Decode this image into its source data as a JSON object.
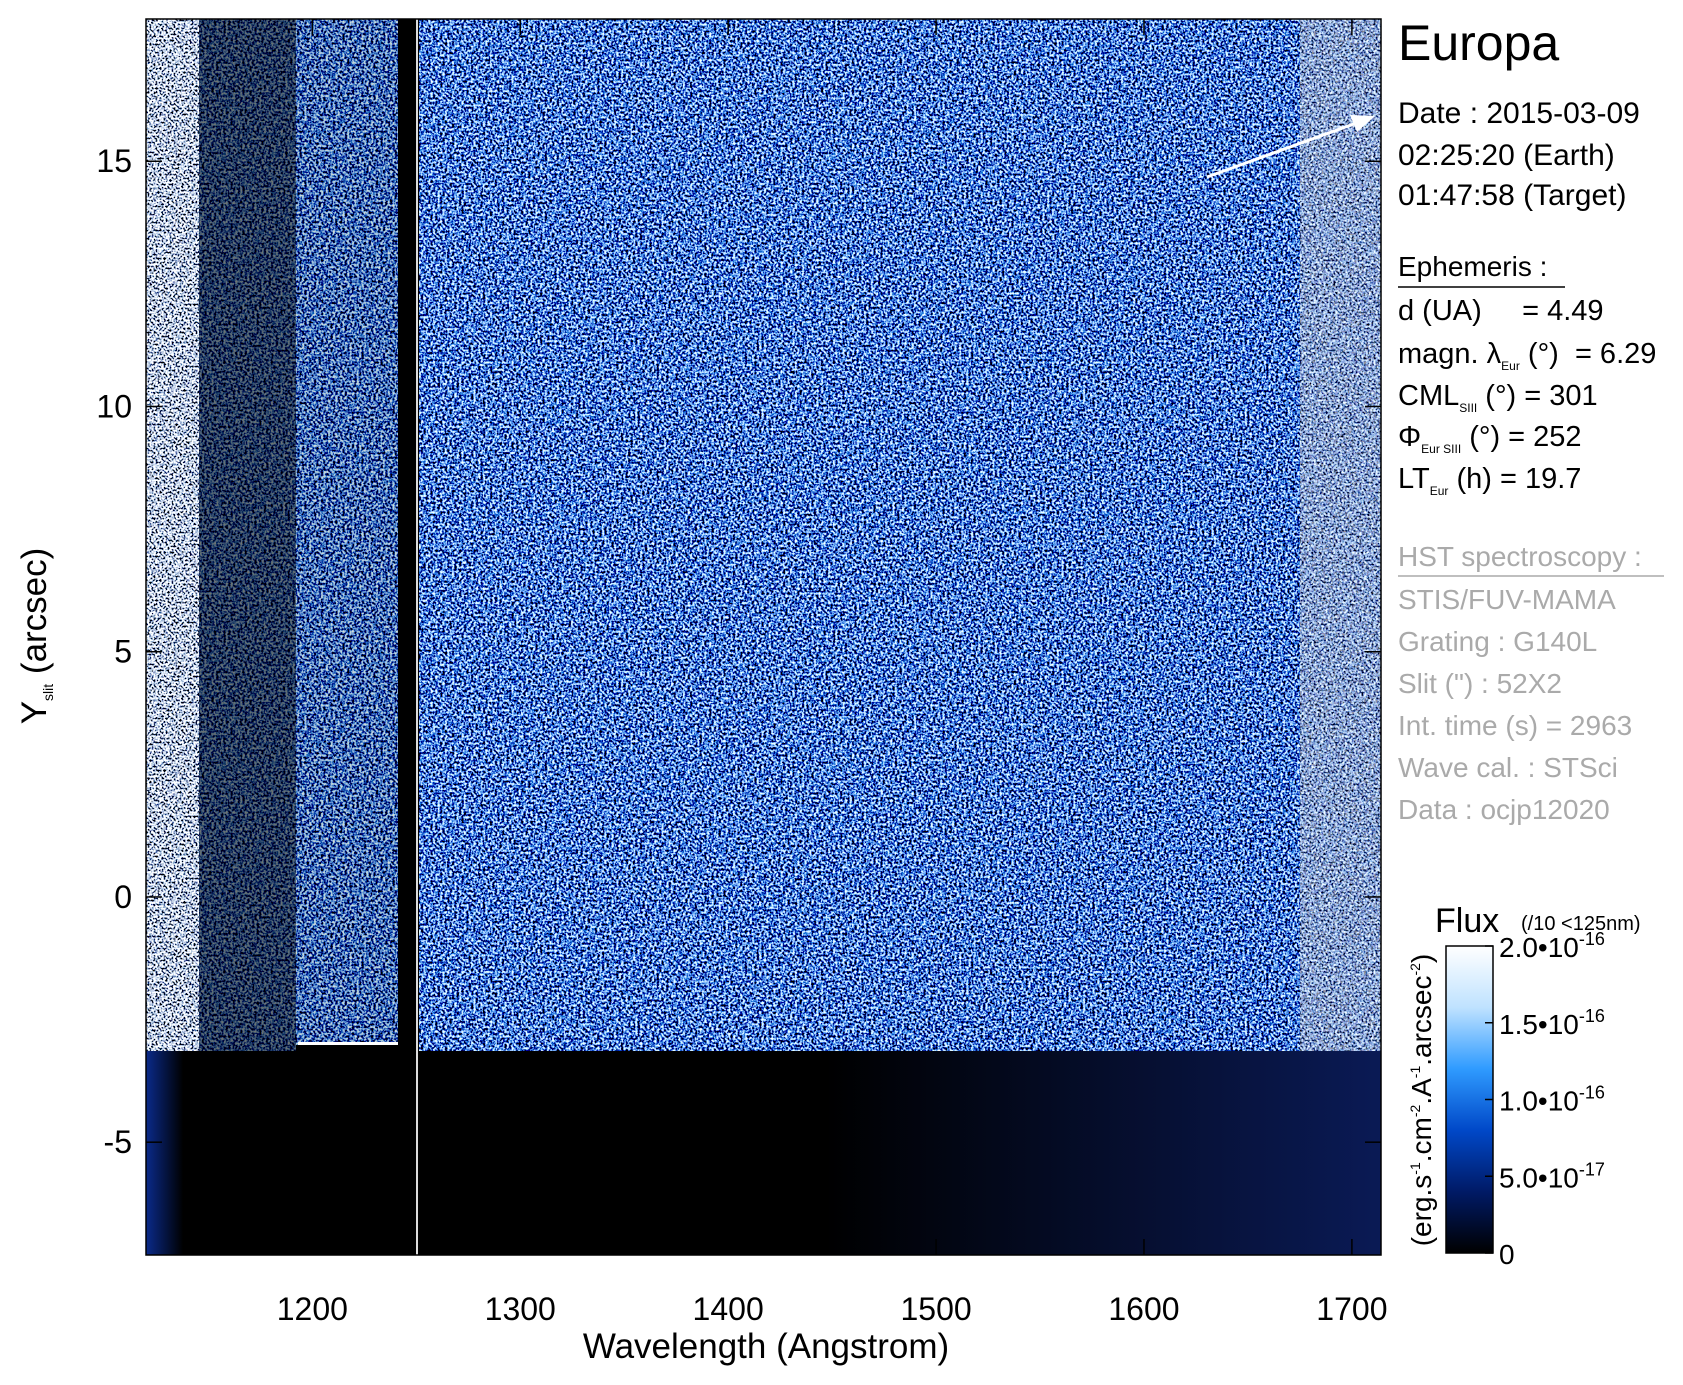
{
  "chart_data": {
    "type": "spectral-image",
    "title": "Europa",
    "xlabel": "Wavelength (Angstrom)",
    "ylabel": {
      "main": "Y",
      "sub": "slit",
      "rest": " (arcsec)"
    },
    "xlim": [
      1120,
      1714
    ],
    "ylim": [
      -7.3,
      17.9
    ],
    "xticks": [
      1200,
      1300,
      1400,
      1500,
      1600,
      1700
    ],
    "yticks": [
      -5,
      0,
      5,
      10,
      15
    ],
    "colorbar": {
      "title": "Flux",
      "note": "(/10 <125nm)",
      "unit": [
        "(erg.s",
        "-1",
        ".cm",
        "-2",
        ".A",
        "-1",
        ".arcsec",
        "-2",
        ")"
      ],
      "lim": [
        0,
        2e-16
      ],
      "ticks": [
        0,
        {
          "value": 5e-17,
          "label": "5.0•10",
          "exponent": "-17"
        },
        {
          "value": 1e-16,
          "label": "1.0•10",
          "exponent": "-16"
        },
        {
          "value": 1.5e-16,
          "label": "1.5•10",
          "exponent": "-16"
        },
        {
          "value": 2e-16,
          "label": "2.0•10",
          "exponent": "-16"
        }
      ],
      "colors": [
        "#000000",
        "#001a66",
        "#0048c8",
        "#2f9bff",
        "#bfe2ff",
        "#ffffff"
      ]
    }
  },
  "panel": {
    "date": [
      "Date : 2015-03-09",
      "02:25:20 (Earth)",
      "01:47:58 (Target)"
    ],
    "ephemeris": {
      "heading": "Ephemeris :",
      "lines": [
        {
          "text": "d (UA)     = 4.49"
        },
        {
          "text": "magn. λ",
          "sub": "Eur",
          "rest": " (°)  = 6.29"
        },
        {
          "text": "CML",
          "sub": "SIII",
          "rest": " (°) = 301"
        },
        {
          "text": "Φ",
          "sub": "Eur SIII",
          "rest": " (°) = 252"
        },
        {
          "text": "LT",
          "sub": "Eur",
          "rest": " (h) = 19.7"
        }
      ]
    },
    "instrument": {
      "heading": "HST spectroscopy :",
      "lines": [
        "STIS/FUV-MAMA",
        "Grating : G140L",
        "Slit (\") : 52X2",
        "Int. time (s) = 2963",
        "Wave cal. : STSci",
        "Data : ocjp12020"
      ]
    }
  }
}
